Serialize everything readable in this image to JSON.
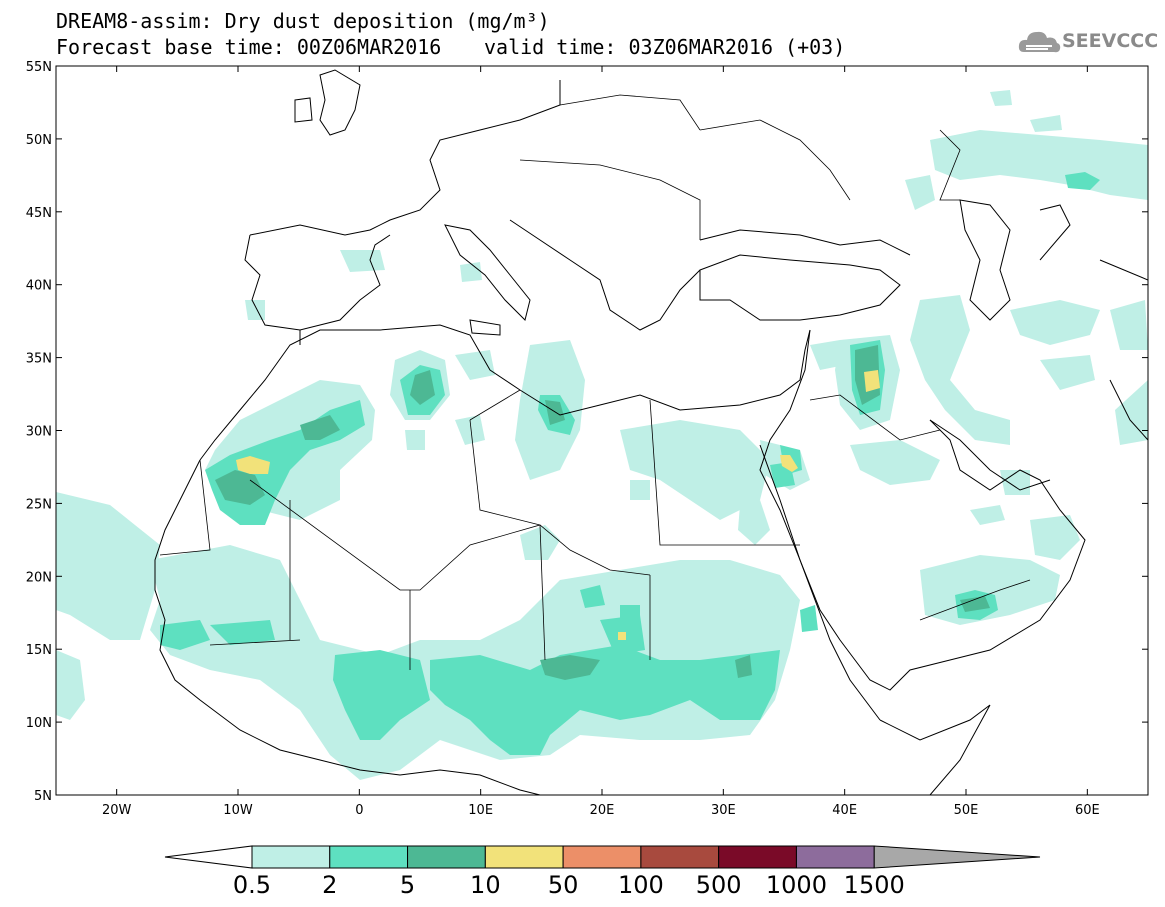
{
  "header": {
    "title_line1": "DREAM8-assim: Dry dust deposition (mg/m³)",
    "title_line2": "Forecast base time: 00Z06MAR2016",
    "valid_time": "valid time: 03Z06MAR2016 (+03)"
  },
  "logo": {
    "text": "SEEVCCC",
    "icon": "cloud-icon"
  },
  "map": {
    "lat_labels": [
      "55N",
      "50N",
      "45N",
      "40N",
      "35N",
      "30N",
      "25N",
      "20N",
      "15N",
      "10N",
      "5N"
    ],
    "lon_labels": [
      "20W",
      "10W",
      "0",
      "10E",
      "20E",
      "30E",
      "40E",
      "50E",
      "60E"
    ],
    "lon_range": [
      -25,
      65
    ],
    "lat_range": [
      5,
      55
    ]
  },
  "colorbar": {
    "labels": [
      "0.5",
      "2",
      "5",
      "10",
      "50",
      "100",
      "500",
      "1000",
      "1500"
    ],
    "colors": [
      "#ffffff",
      "#bfefe6",
      "#5ee0c0",
      "#4db894",
      "#f2e27a",
      "#ec8f68",
      "#a84a3e",
      "#7a0a28",
      "#8d6c9c",
      "#a8a8a8"
    ]
  },
  "legend_colors": {
    "c1": "#bfefe6",
    "c2": "#5ee0c0",
    "c3": "#4db894",
    "c4": "#f2e27a"
  }
}
